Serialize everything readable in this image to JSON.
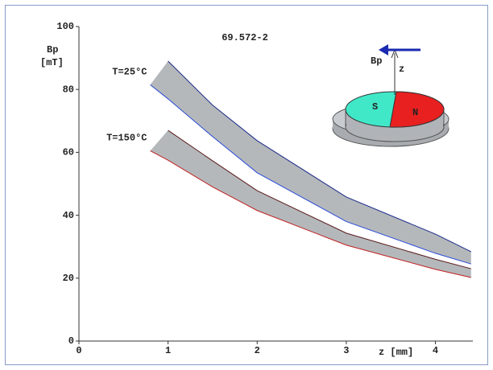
{
  "chart_data": {
    "type": "band",
    "title": "69.572-2",
    "ylabel": "Bp",
    "yunit": "[mT]",
    "xlabel": "z [mm]",
    "x": [
      0.8,
      1,
      1.5,
      2,
      3,
      4,
      4.4
    ],
    "series": [
      {
        "name": "T=25°C",
        "color": "#b4b8bb",
        "upper_color": "#1a2a8a",
        "lower_color": "#2a4ad8",
        "upper": [
          null,
          89,
          75,
          63.7,
          45.8,
          34,
          28.4
        ],
        "lower": [
          81.5,
          77,
          65,
          53.5,
          38,
          27.9,
          24.5
        ]
      },
      {
        "name": "T=150°C",
        "color": "#b4b8bb",
        "upper_color": "#5a1a1a",
        "lower_color": "#c02020",
        "upper": [
          null,
          67,
          57.3,
          47.8,
          34.3,
          26,
          23
        ],
        "lower": [
          60.5,
          57.5,
          49,
          41.5,
          30.5,
          22.8,
          20.2
        ]
      }
    ],
    "xlim": [
      0,
      4.42
    ],
    "ylim": [
      0,
      100
    ],
    "xticks": [
      0,
      1,
      2,
      3,
      4
    ],
    "yticks": [
      0,
      20,
      40,
      60,
      80,
      100
    ],
    "grid": false,
    "annotations": [
      "S",
      "N",
      "Bp",
      "z"
    ]
  }
}
